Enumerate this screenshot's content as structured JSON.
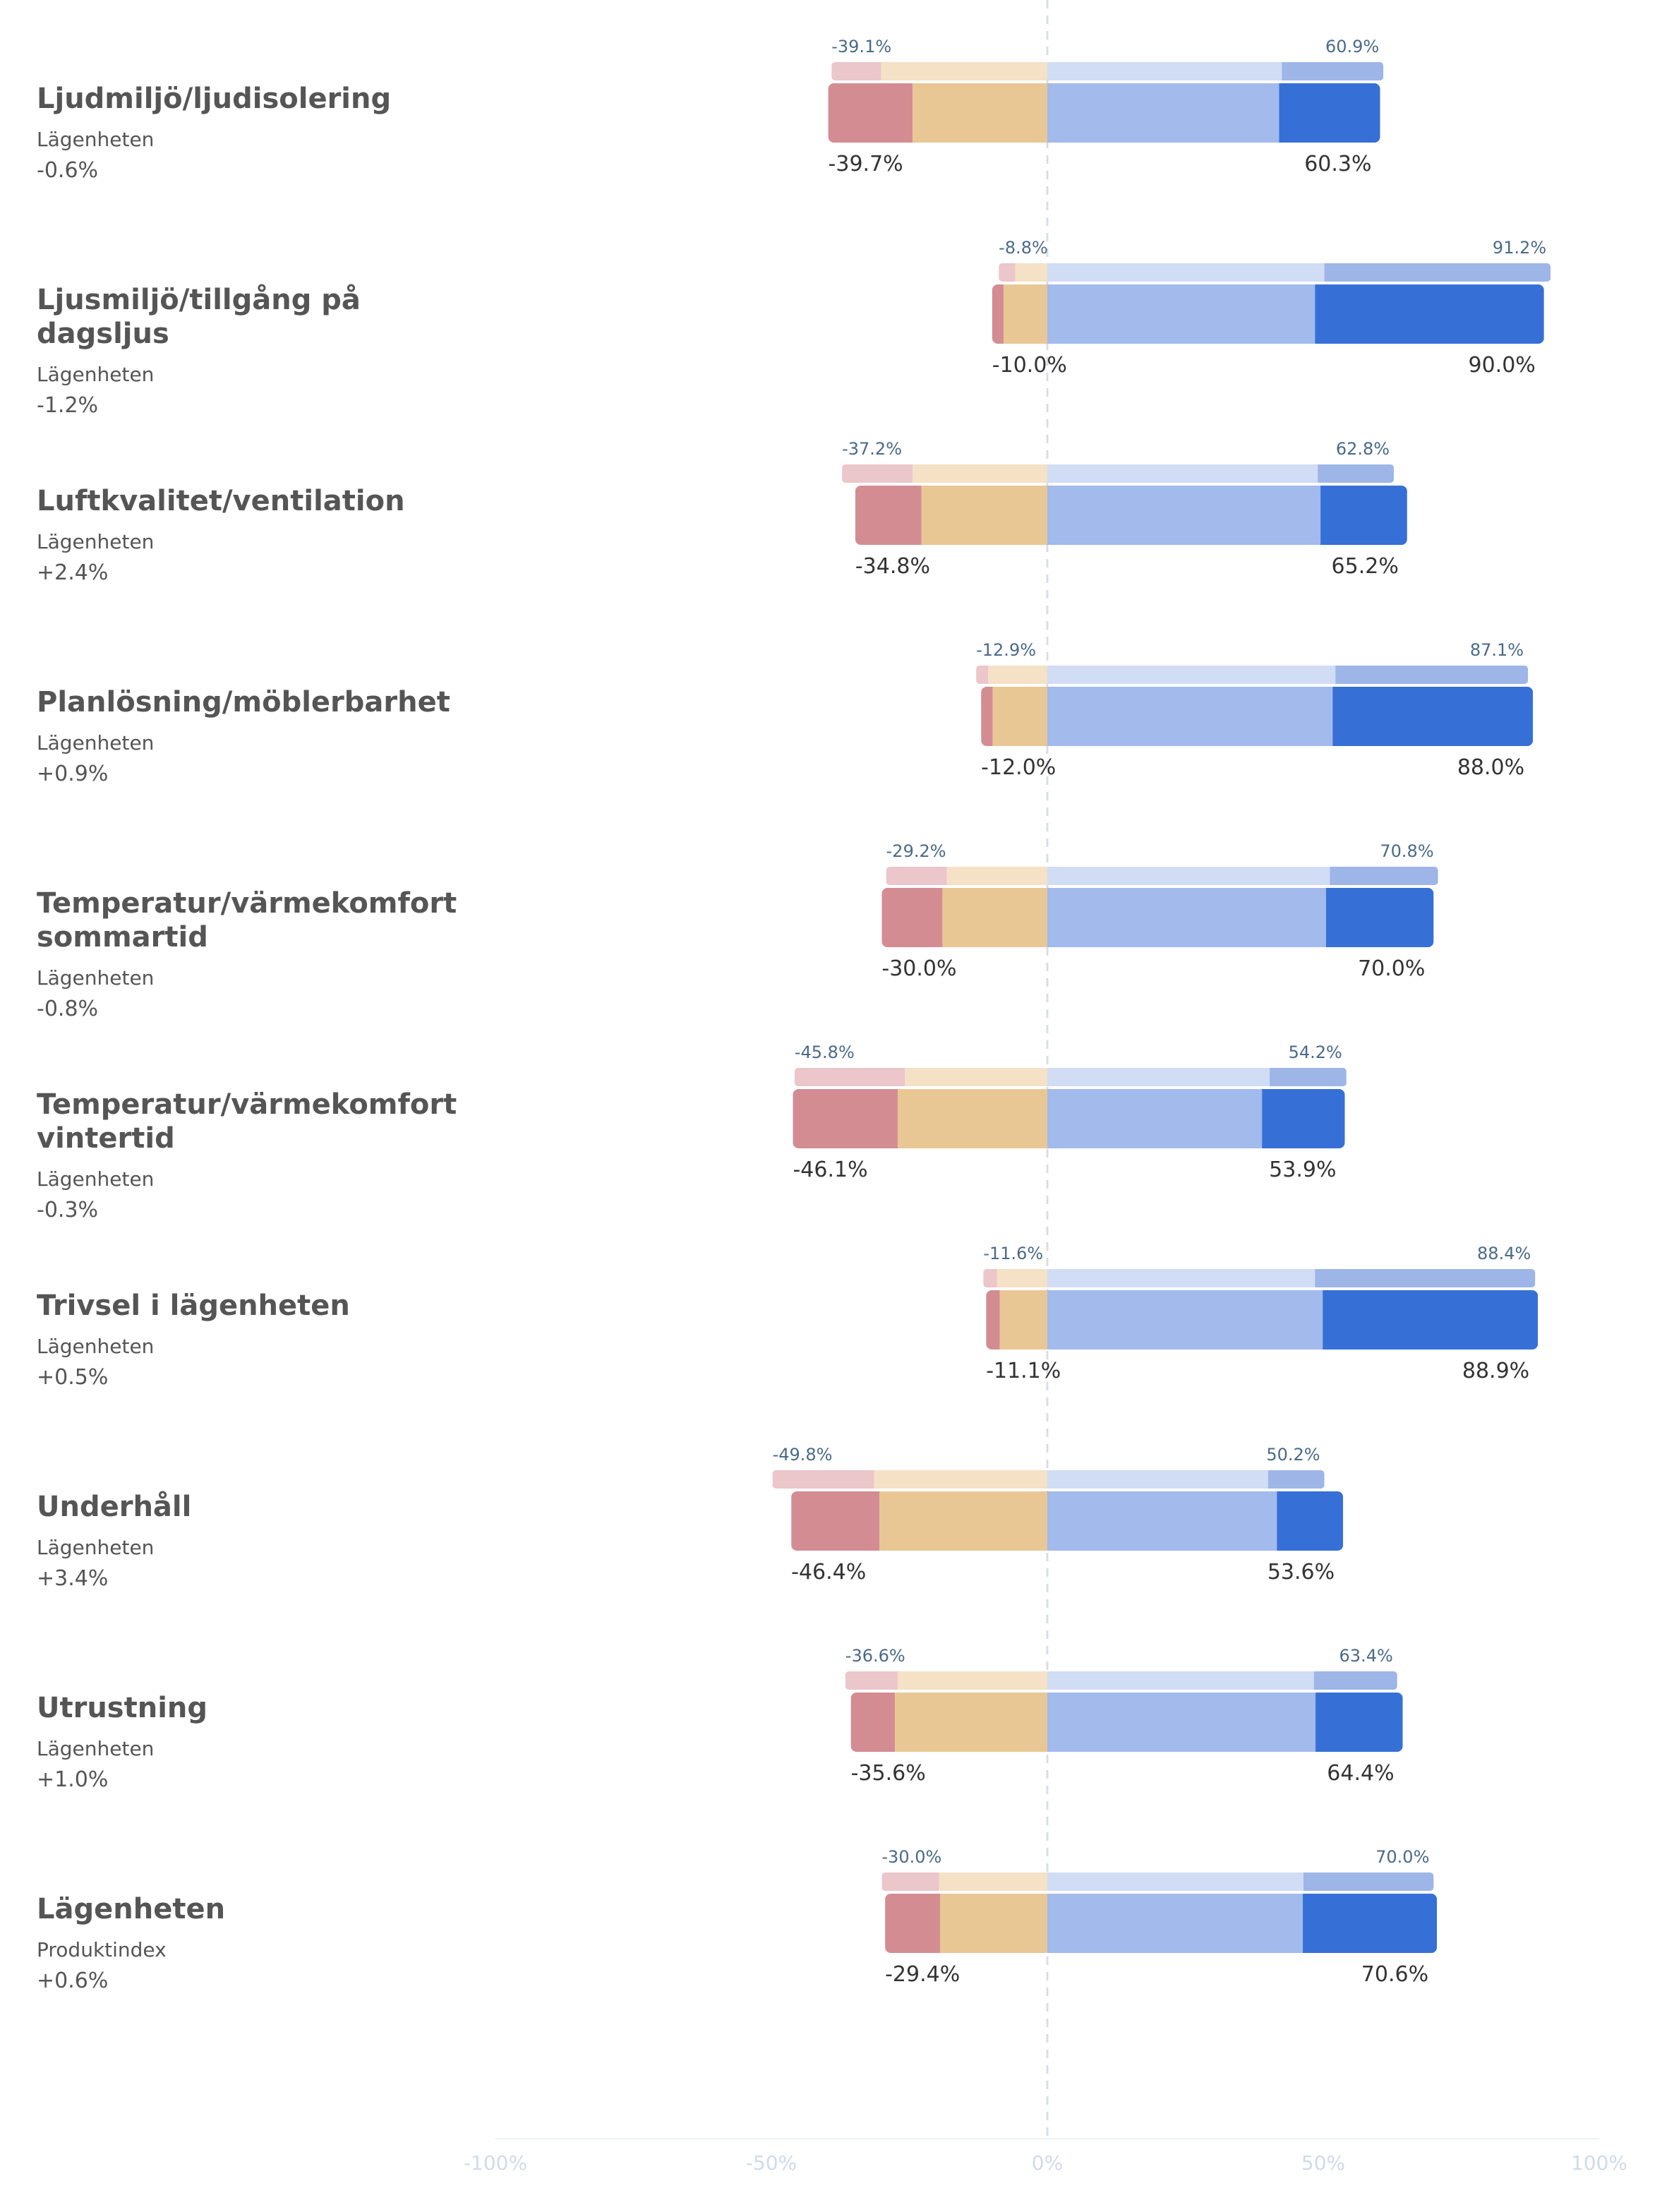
{
  "chart_data": {
    "type": "bar",
    "subtype": "diverging-stacked-horizontal",
    "x_range": [
      -100,
      100
    ],
    "x_ticks": [
      {
        "value": -100,
        "label": "-100%"
      },
      {
        "value": -50,
        "label": "-50%"
      },
      {
        "value": 0,
        "label": "0%"
      },
      {
        "value": 50,
        "label": "50%"
      },
      {
        "value": 100,
        "label": "100%"
      }
    ],
    "colors": {
      "strong_negative": "#d48c93",
      "weak_negative": "#e9c794",
      "weak_positive": "#a2baec",
      "strong_positive": "#3670d6",
      "ref_strong_negative": "#ebc6cb",
      "ref_weak_negative": "#f4e1c6",
      "ref_weak_positive": "#d1dcf5",
      "ref_strong_positive": "#9db6e7",
      "ref_label": "#4a6a8a",
      "main_label": "#333333",
      "axis_label": "#d0dbe9"
    },
    "rows": [
      {
        "title": "Ljudmiljö/ljudisolering",
        "sub": "Lägenheten",
        "delta": "-0.6%",
        "ref": {
          "strong_neg": 9,
          "weak_neg": 30.1,
          "weak_pos": 42.5,
          "strong_pos": 18.4,
          "neg_label": "-39.1%",
          "pos_label": "60.9%"
        },
        "main": {
          "strong_neg": 15.3,
          "weak_neg": 24.4,
          "weak_pos": 42,
          "strong_pos": 18.3,
          "neg_label": "-39.7%",
          "pos_label": "60.3%"
        }
      },
      {
        "title": "Ljusmiljö/tillgång på dagsljus",
        "sub": "Lägenheten",
        "delta": "-1.2%",
        "ref": {
          "strong_neg": 3,
          "weak_neg": 5.8,
          "weak_pos": 50.2,
          "strong_pos": 41,
          "neg_label": "-8.8%",
          "pos_label": "91.2%"
        },
        "main": {
          "strong_neg": 2.1,
          "weak_neg": 7.9,
          "weak_pos": 48.5,
          "strong_pos": 41.5,
          "neg_label": "-10.0%",
          "pos_label": "90.0%"
        }
      },
      {
        "title": "Luftkvalitet/ventilation",
        "sub": "Lägenheten",
        "delta": "+2.4%",
        "ref": {
          "strong_neg": 12.8,
          "weak_neg": 24.4,
          "weak_pos": 49,
          "strong_pos": 13.8,
          "neg_label": "-37.2%",
          "pos_label": "62.8%"
        },
        "main": {
          "strong_neg": 12,
          "weak_neg": 22.8,
          "weak_pos": 49.5,
          "strong_pos": 15.7,
          "neg_label": "-34.8%",
          "pos_label": "65.2%"
        }
      },
      {
        "title": "Planlösning/möblerbarhet",
        "sub": "Lägenheten",
        "delta": "+0.9%",
        "ref": {
          "strong_neg": 2.2,
          "weak_neg": 10.7,
          "weak_pos": 52.2,
          "strong_pos": 34.9,
          "neg_label": "-12.9%",
          "pos_label": "87.1%"
        },
        "main": {
          "strong_neg": 2.1,
          "weak_neg": 9.9,
          "weak_pos": 51.7,
          "strong_pos": 36.3,
          "neg_label": "-12.0%",
          "pos_label": "88.0%"
        }
      },
      {
        "title": "Temperatur/värmekomfort sommartid",
        "sub": "Lägenheten",
        "delta": "-0.8%",
        "ref": {
          "strong_neg": 11,
          "weak_neg": 18.2,
          "weak_pos": 51.2,
          "strong_pos": 19.6,
          "neg_label": "-29.2%",
          "pos_label": "70.8%"
        },
        "main": {
          "strong_neg": 11,
          "weak_neg": 19,
          "weak_pos": 50.5,
          "strong_pos": 19.5,
          "neg_label": "-30.0%",
          "pos_label": "70.0%"
        }
      },
      {
        "title": "Temperatur/värmekomfort vintertid",
        "sub": "Lägenheten",
        "delta": "-0.3%",
        "ref": {
          "strong_neg": 20,
          "weak_neg": 25.8,
          "weak_pos": 40.3,
          "strong_pos": 13.9,
          "neg_label": "-45.8%",
          "pos_label": "54.2%"
        },
        "main": {
          "strong_neg": 19,
          "weak_neg": 27.1,
          "weak_pos": 38.9,
          "strong_pos": 15,
          "neg_label": "-46.1%",
          "pos_label": "53.9%"
        }
      },
      {
        "title": "Trivsel i lägenheten",
        "sub": "Lägenheten",
        "delta": "+0.5%",
        "ref": {
          "strong_neg": 2.5,
          "weak_neg": 9.1,
          "weak_pos": 48.5,
          "strong_pos": 39.9,
          "neg_label": "-11.6%",
          "pos_label": "88.4%"
        },
        "main": {
          "strong_neg": 2.5,
          "weak_neg": 8.6,
          "weak_pos": 49.9,
          "strong_pos": 39,
          "neg_label": "-11.1%",
          "pos_label": "88.9%"
        }
      },
      {
        "title": "Underhåll",
        "sub": "Lägenheten",
        "delta": "+3.4%",
        "ref": {
          "strong_neg": 18.4,
          "weak_neg": 31.4,
          "weak_pos": 40,
          "strong_pos": 10.2,
          "neg_label": "-49.8%",
          "pos_label": "50.2%"
        },
        "main": {
          "strong_neg": 16,
          "weak_neg": 30.4,
          "weak_pos": 41.6,
          "strong_pos": 12,
          "neg_label": "-46.4%",
          "pos_label": "53.6%"
        }
      },
      {
        "title": "Utrustning",
        "sub": "Lägenheten",
        "delta": "+1.0%",
        "ref": {
          "strong_neg": 9.5,
          "weak_neg": 27.1,
          "weak_pos": 48.3,
          "strong_pos": 15.1,
          "neg_label": "-36.6%",
          "pos_label": "63.4%"
        },
        "main": {
          "strong_neg": 8,
          "weak_neg": 27.6,
          "weak_pos": 48.6,
          "strong_pos": 15.8,
          "neg_label": "-35.6%",
          "pos_label": "64.4%"
        }
      },
      {
        "title": "Lägenheten",
        "sub": "Produktindex",
        "delta": "+0.6%",
        "ref": {
          "strong_neg": 10.4,
          "weak_neg": 19.6,
          "weak_pos": 46.4,
          "strong_pos": 23.6,
          "neg_label": "-30.0%",
          "pos_label": "70.0%"
        },
        "main": {
          "strong_neg": 10,
          "weak_neg": 19.4,
          "weak_pos": 46.3,
          "strong_pos": 24.3,
          "neg_label": "-29.4%",
          "pos_label": "70.6%"
        }
      }
    ]
  }
}
